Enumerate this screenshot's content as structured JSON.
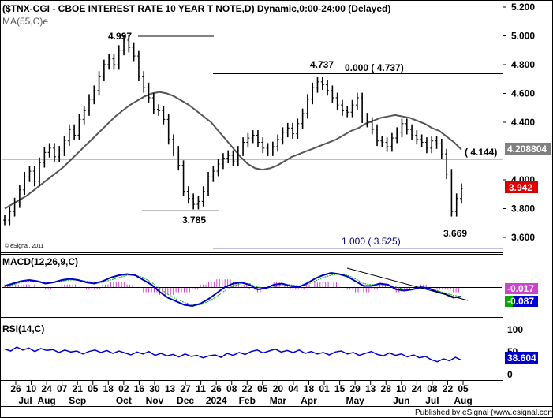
{
  "chart_data": {
    "type": "bar",
    "title": "($TNX-CGI - CBOE INTEREST RATE 10 YEAR T NOTE,D) Dynamic,0:00-24:00 (Delayed)",
    "ma_label": "MA(55,C)e",
    "watermark": "© eSignal, 2011",
    "publisher": "Published by eSignal (www.esignal.com)",
    "colors": {
      "price_bars": "#000000",
      "ma": "#555555",
      "macd_line": "#0000cc",
      "macd_signal": "#00aa00",
      "macd_hist": "#cc44cc",
      "rsi": "#0000cc",
      "annotation": "#000000",
      "fib": "#00007a",
      "badge_ma": "#808080",
      "badge_price": "#dd0000",
      "badge_rsi": "#0000cc"
    },
    "price_axis": {
      "ylim": [
        3.5,
        5.2
      ],
      "ticks": [
        "5.200",
        "5.000",
        "4.800",
        "4.600",
        "4.400",
        "4.200",
        "4.000",
        "3.800",
        "3.600"
      ],
      "ma_value": "4.208804",
      "last_price": "3.942"
    },
    "x_axis": {
      "day_labels": [
        "26",
        "10",
        "24",
        "07",
        "21",
        "05",
        "18",
        "02",
        "16",
        "30",
        "13",
        "27",
        "11",
        "26",
        "08",
        "22",
        "05",
        "20",
        "04",
        "18",
        "01",
        "15",
        "29",
        "13",
        "28",
        "10",
        "24",
        "08",
        "22",
        "05"
      ],
      "month_labels": [
        "Jul",
        "Aug",
        "Sep",
        "Oct",
        "Nov",
        "Dec",
        "2024",
        "Feb",
        "Mar",
        "Apr",
        "May",
        "Jun",
        "Jul",
        "Aug"
      ]
    },
    "annotations": {
      "peak": "4.997",
      "low_dec": "3.785",
      "peak_apr": "4.737",
      "fib0": "0.000 ( 4.737)",
      "fib_level": "( 4.144)",
      "fib1": "1.000 ( 3.525)",
      "low_aug": "3.669"
    },
    "levels": {
      "peak": 4.997,
      "low_dec": 3.785,
      "peak_apr": 4.737,
      "fib_level": 4.144,
      "fib1": 3.525
    },
    "macd": {
      "label": "MACD(12,26,9,C)",
      "value1": "-0.017",
      "value2": "-0.087"
    },
    "rsi": {
      "label": "RSI(14,C)",
      "ticks": [
        "100",
        "50",
        "0"
      ],
      "value": "38.604"
    },
    "series": [
      {
        "name": "$TNX-CGI",
        "values": [
          3.72,
          3.78,
          3.84,
          3.93,
          4.02,
          4.06,
          3.99,
          4.12,
          4.19,
          4.22,
          4.16,
          4.2,
          4.27,
          4.35,
          4.31,
          4.42,
          4.48,
          4.56,
          4.62,
          4.72,
          4.8,
          4.84,
          4.8,
          4.9,
          4.97,
          4.92,
          4.86,
          4.72,
          4.64,
          4.57,
          4.49,
          4.48,
          4.42,
          4.28,
          4.2,
          4.1,
          3.92,
          3.87,
          3.83,
          3.85,
          3.92,
          4.02,
          4.06,
          4.11,
          4.15,
          4.17,
          4.13,
          4.2,
          4.26,
          4.29,
          4.31,
          4.26,
          4.22,
          4.2,
          4.23,
          4.28,
          4.33,
          4.36,
          4.32,
          4.39,
          4.46,
          4.56,
          4.64,
          4.68,
          4.66,
          4.62,
          4.57,
          4.52,
          4.48,
          4.47,
          4.52,
          4.57,
          4.43,
          4.4,
          4.35,
          4.27,
          4.26,
          4.23,
          4.29,
          4.33,
          4.39,
          4.35,
          4.31,
          4.28,
          4.26,
          4.22,
          4.27,
          4.25,
          4.18,
          4.04,
          3.78,
          3.87,
          3.94
        ]
      }
    ],
    "ma55": [
      3.8,
      3.83,
      3.86,
      3.89,
      3.93,
      3.97,
      4.01,
      4.05,
      4.09,
      4.14,
      4.19,
      4.24,
      4.29,
      4.34,
      4.39,
      4.44,
      4.48,
      4.52,
      4.55,
      4.58,
      4.6,
      4.61,
      4.6,
      4.58,
      4.55,
      4.52,
      4.48,
      4.44,
      4.4,
      4.34,
      4.28,
      4.22,
      4.16,
      4.11,
      4.08,
      4.07,
      4.08,
      4.1,
      4.13,
      4.16,
      4.18,
      4.2,
      4.22,
      4.24,
      4.26,
      4.28,
      4.31,
      4.34,
      4.36,
      4.39,
      4.41,
      4.43,
      4.44,
      4.45,
      4.44,
      4.43,
      4.41,
      4.39,
      4.36,
      4.34,
      4.3,
      4.26,
      4.21
    ],
    "macd_line": [
      0.01,
      0.03,
      0.05,
      0.06,
      0.05,
      0.03,
      0.04,
      0.06,
      0.07,
      0.06,
      0.04,
      0.03,
      0.05,
      0.08,
      0.1,
      0.11,
      0.1,
      0.06,
      0.02,
      -0.04,
      -0.09,
      -0.12,
      -0.15,
      -0.16,
      -0.14,
      -0.1,
      -0.05,
      0.0,
      0.03,
      0.04,
      0.02,
      -0.02,
      -0.01,
      0.02,
      0.03,
      0.01,
      0.0,
      0.03,
      0.07,
      0.1,
      0.12,
      0.11,
      0.09,
      0.05,
      0.01,
      0.01,
      0.03,
      0.02,
      -0.02,
      -0.03,
      -0.02,
      0.0,
      -0.01,
      -0.04,
      -0.06,
      -0.09,
      -0.08
    ],
    "macd_signal": [
      0.0,
      0.02,
      0.04,
      0.05,
      0.05,
      0.04,
      0.04,
      0.05,
      0.06,
      0.06,
      0.05,
      0.04,
      0.04,
      0.06,
      0.08,
      0.1,
      0.1,
      0.08,
      0.04,
      -0.01,
      -0.06,
      -0.1,
      -0.13,
      -0.15,
      -0.15,
      -0.12,
      -0.08,
      -0.03,
      0.01,
      0.03,
      0.03,
      0.0,
      -0.01,
      0.0,
      0.02,
      0.02,
      0.01,
      0.02,
      0.05,
      0.08,
      0.1,
      0.11,
      0.1,
      0.07,
      0.03,
      0.02,
      0.02,
      0.02,
      0.0,
      -0.02,
      -0.02,
      -0.01,
      -0.01,
      -0.03,
      -0.05,
      -0.07,
      -0.08
    ],
    "rsi_values": [
      62,
      58,
      66,
      60,
      64,
      57,
      63,
      59,
      61,
      55,
      60,
      56,
      58,
      52,
      57,
      60,
      55,
      59,
      53,
      58,
      54,
      50,
      56,
      52,
      57,
      49,
      53,
      48,
      51,
      46,
      52,
      47,
      49,
      44,
      48,
      50,
      45,
      53,
      49,
      55,
      51,
      57,
      60,
      54,
      58,
      62,
      56,
      59,
      55,
      60,
      53,
      57,
      52,
      55,
      50,
      56,
      58,
      52,
      55,
      49,
      53,
      57,
      51,
      48,
      54,
      49,
      52,
      46,
      50,
      44,
      47,
      40,
      36,
      42,
      38,
      45,
      39
    ]
  }
}
